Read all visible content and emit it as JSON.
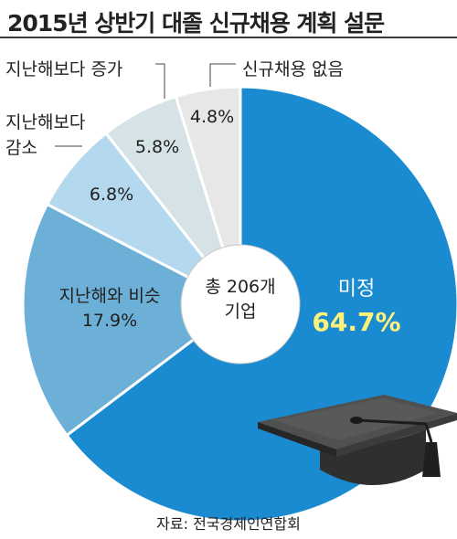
{
  "title": "2015년 상반기 대졸 신규채용 계획 설문",
  "chart_data": {
    "type": "pie",
    "variant": "donut",
    "center_label": [
      "총 206개",
      "기업"
    ],
    "slices": [
      {
        "label": "미정",
        "label_display": "미정",
        "value": 64.7,
        "value_text": "64.7%",
        "color": "#1a8bd1"
      },
      {
        "label": "지난해와 비슷",
        "label_display": "지난해와 비슷",
        "value": 17.9,
        "value_text": "17.9%",
        "color": "#6cb0d8"
      },
      {
        "label": "지난해보다 감소",
        "label_lines": [
          "지난해보다",
          "감소"
        ],
        "value": 6.8,
        "value_text": "6.8%",
        "color": "#b4d9ee"
      },
      {
        "label": "지난해보다 증가",
        "label_display": "지난해보다 증가",
        "value": 5.8,
        "value_text": "5.8%",
        "color": "#d5e2e6"
      },
      {
        "label": "신규채용 없음",
        "label_display": "신규채용 없음",
        "value": 4.8,
        "value_text": "4.8%",
        "color": "#e7e7e7"
      }
    ],
    "highlight_color": "#fff27a"
  },
  "source": "자료: 전국경제인연합회",
  "icons": [
    "graduation-cap-icon"
  ]
}
